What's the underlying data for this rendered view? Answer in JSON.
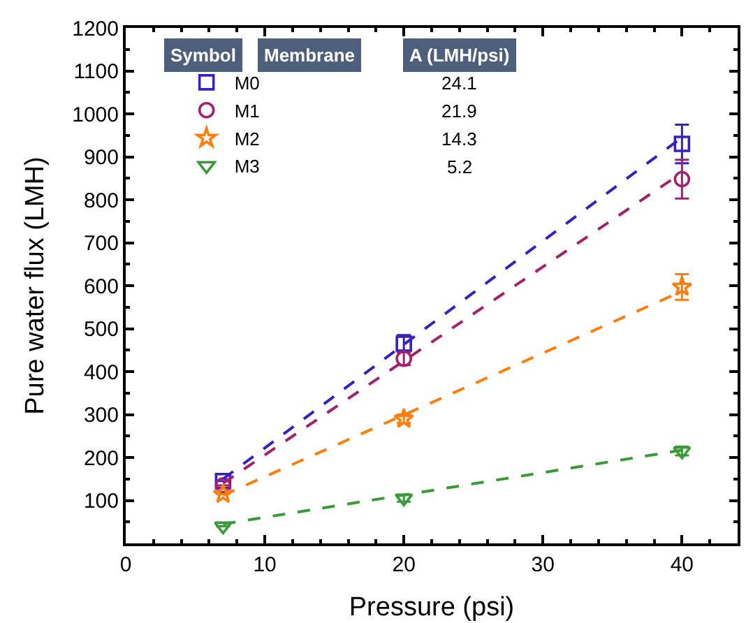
{
  "chart_data": {
    "type": "scatter",
    "xlabel": "Pressure (psi)",
    "ylabel": "Pure water flux (LMH)",
    "xlim": [
      0,
      44
    ],
    "xticks": [
      0,
      10,
      20,
      30,
      40
    ],
    "ylim": [
      0,
      1200
    ],
    "yticks": [
      100,
      200,
      300,
      400,
      500,
      600,
      700,
      800,
      900,
      1000,
      1100,
      1200
    ],
    "legend": "top left",
    "annotations": [
      "Symbol",
      "Membrane",
      "A (LMH/psi)",
      "24.1",
      "21.9",
      "14.3",
      "5.2"
    ],
    "series": [
      {
        "name": "M0",
        "color": "#3a1fc0",
        "marker": "square",
        "x": [
          7,
          20,
          40
        ],
        "values": [
          145,
          465,
          930
        ],
        "errors": [
          null,
          20,
          45
        ]
      },
      {
        "name": "M1",
        "color": "#a0226e",
        "marker": "circle",
        "x": [
          7,
          20,
          40
        ],
        "values": [
          135,
          430,
          848
        ],
        "errors": [
          null,
          15,
          45
        ]
      },
      {
        "name": "M2",
        "color": "#ff7f0e",
        "marker": "star",
        "x": [
          7,
          20,
          40
        ],
        "values": [
          115,
          290,
          597
        ],
        "errors": [
          null,
          10,
          30
        ]
      },
      {
        "name": "M3",
        "color": "#3a9a3a",
        "marker": "triangle",
        "x": [
          7,
          20,
          40
        ],
        "values": [
          40,
          105,
          215
        ],
        "errors": [
          null,
          8,
          10
        ]
      },
      {
        "type": "line",
        "color": "#3a1fc0",
        "line_style": "dashed",
        "x": [
          7,
          40
        ],
        "values": [
          150,
          945
        ]
      },
      {
        "type": "line",
        "color": "#a0226e",
        "line_style": "dashed",
        "x": [
          7,
          40
        ],
        "values": [
          140,
          863
        ]
      },
      {
        "type": "line",
        "color": "#ff7f0e",
        "line_style": "dashed",
        "x": [
          7,
          40
        ],
        "values": [
          112,
          587
        ]
      },
      {
        "type": "line",
        "color": "#3a9a3a",
        "line_style": "dashed",
        "x": [
          7,
          40
        ],
        "values": [
          45,
          217
        ]
      }
    ]
  }
}
